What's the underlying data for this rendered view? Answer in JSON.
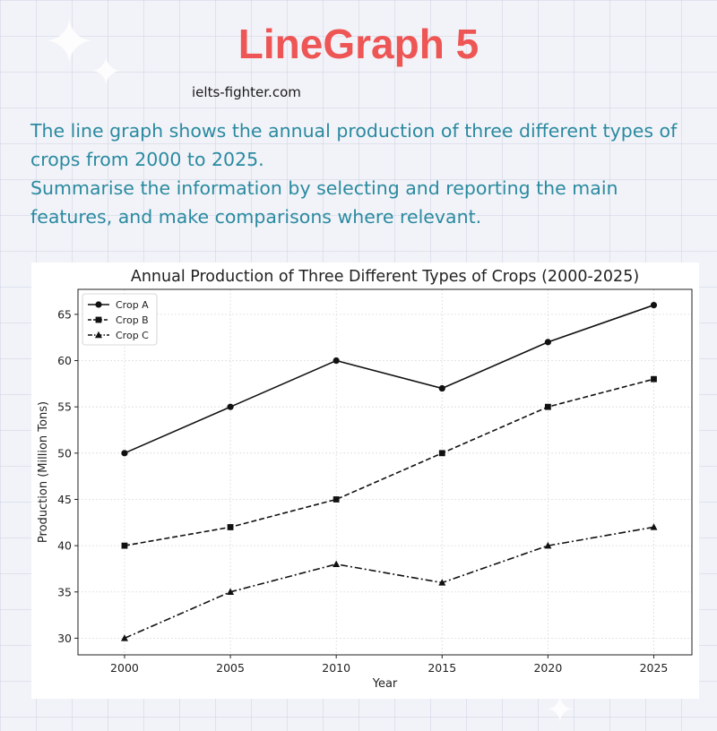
{
  "header": {
    "title": "LineGraph 5",
    "site": "ielts-fighter.com"
  },
  "prompt": {
    "line1": "The line graph shows the annual production of three different types of crops from 2000 to 2025.",
    "line2": "Summarise the information by selecting and reporting the main features, and make comparisons where relevant."
  },
  "colors": {
    "title": "#ee5555",
    "prompt": "#2a8aa0",
    "lines": "#111111"
  },
  "chart_data": {
    "type": "line",
    "title": "Annual Production of Three Different Types of Crops (2000-2025)",
    "xlabel": "Year",
    "ylabel": "Production (Million Tons)",
    "x": [
      2000,
      2005,
      2010,
      2015,
      2020,
      2025
    ],
    "xlim": [
      1997.8,
      2026.8
    ],
    "ylim": [
      28.2,
      67.7
    ],
    "yticks": [
      30,
      35,
      40,
      45,
      50,
      55,
      60,
      65
    ],
    "grid": true,
    "legend_position": "top-left",
    "series": [
      {
        "name": "Crop A",
        "values": [
          50,
          55,
          60,
          57,
          62,
          66
        ],
        "marker": "circle",
        "dash": "solid"
      },
      {
        "name": "Crop B",
        "values": [
          40,
          42,
          45,
          50,
          55,
          58
        ],
        "marker": "square",
        "dash": "dashed"
      },
      {
        "name": "Crop C",
        "values": [
          30,
          35,
          38,
          36,
          40,
          42
        ],
        "marker": "triangle",
        "dash": "dashdot"
      }
    ]
  }
}
